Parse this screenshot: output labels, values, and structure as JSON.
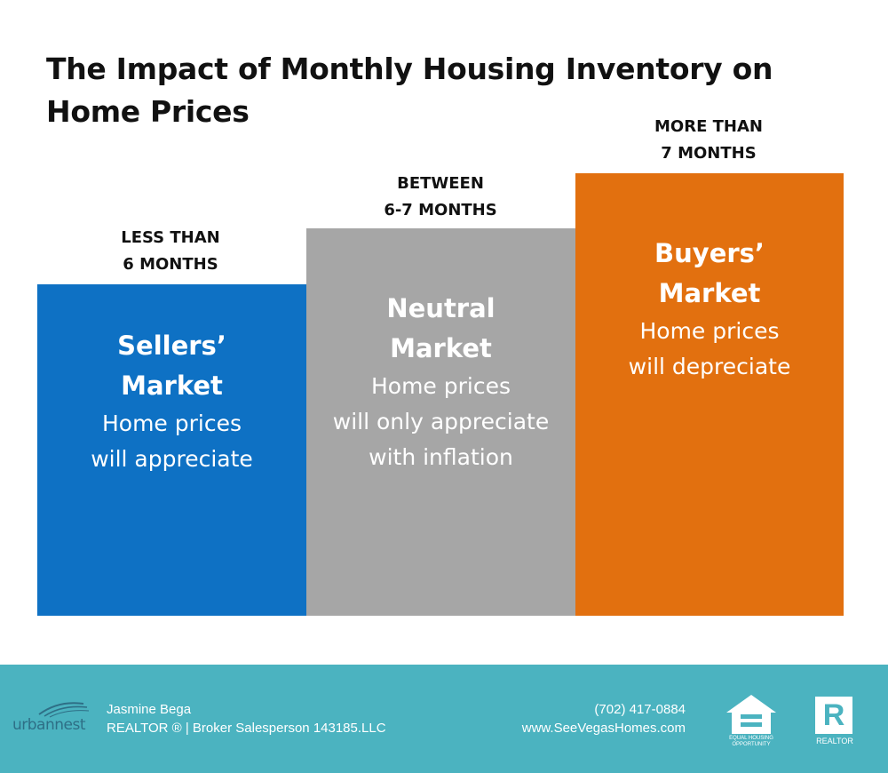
{
  "title": "The Impact of Monthly Housing Inventory on Home Prices",
  "blocks": [
    {
      "range_lines": [
        "LESS THAN",
        "6 MONTHS"
      ],
      "market_lines": [
        "Sellers’",
        "Market"
      ],
      "desc_lines": [
        "Home prices",
        "will appreciate"
      ],
      "color": "#0e71c4"
    },
    {
      "range_lines": [
        "BETWEEN",
        "6-7 MONTHS"
      ],
      "market_lines": [
        "Neutral",
        "Market"
      ],
      "desc_lines": [
        "Home prices",
        "will only appreciate",
        "with inflation"
      ],
      "color": "#a6a6a6"
    },
    {
      "range_lines": [
        "MORE THAN",
        "7 MONTHS"
      ],
      "market_lines": [
        "Buyers’",
        "Market"
      ],
      "desc_lines": [
        "Home prices",
        "will depreciate"
      ],
      "color": "#e2700f"
    }
  ],
  "footer": {
    "background": "#4bb3c0",
    "logo": {
      "word": "urbannest",
      "icon": "urbannest-logo-icon"
    },
    "agent_name": "Jasmine Bega",
    "agent_title": "REALTOR ® | Broker Salesperson 143185.LLC",
    "phone": "(702) 417-0884",
    "website": "www.SeeVegasHomes.com",
    "equal_housing": {
      "icon": "equal-housing-opportunity-icon",
      "text_lines": [
        "EQUAL HOUSING",
        "OPPORTUNITY"
      ]
    },
    "realtor_badge": {
      "icon": "realtor-logo-icon",
      "letter": "R",
      "text": "REALTOR"
    }
  }
}
